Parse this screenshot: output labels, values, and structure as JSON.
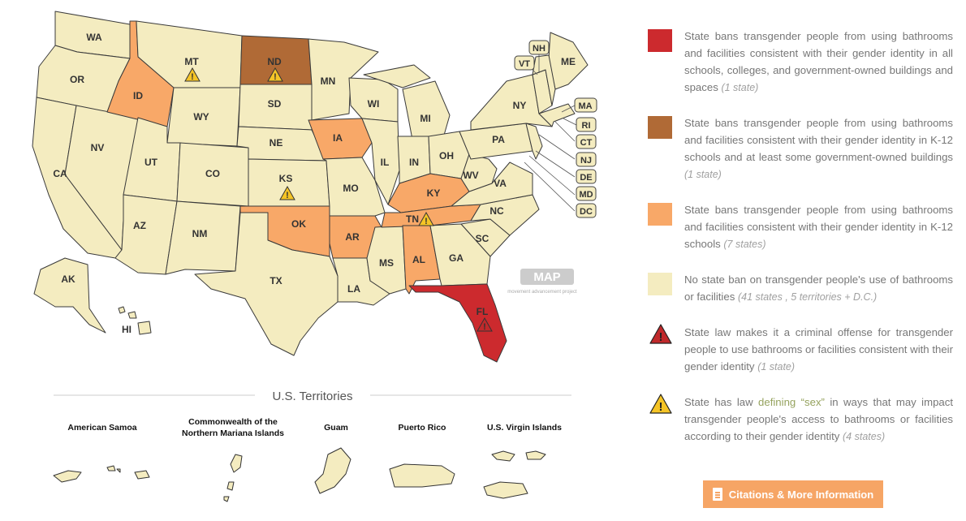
{
  "colors": {
    "all_buildings": "#cc2a2e",
    "k12_and_gov": "#b06a36",
    "k12_only": "#f8a868",
    "none": "#f4ecc0",
    "warning_red": "#c0292b",
    "warning_yellow": "#f5c426",
    "button": "#f6a565"
  },
  "map": {
    "states": [
      {
        "abbr": "WA",
        "category": "none"
      },
      {
        "abbr": "OR",
        "category": "none"
      },
      {
        "abbr": "CA",
        "category": "none"
      },
      {
        "abbr": "NV",
        "category": "none"
      },
      {
        "abbr": "ID",
        "category": "k12_only"
      },
      {
        "abbr": "MT",
        "category": "none",
        "warning": "yellow"
      },
      {
        "abbr": "WY",
        "category": "none"
      },
      {
        "abbr": "UT",
        "category": "none"
      },
      {
        "abbr": "AZ",
        "category": "none"
      },
      {
        "abbr": "CO",
        "category": "none"
      },
      {
        "abbr": "NM",
        "category": "none"
      },
      {
        "abbr": "ND",
        "category": "k12_and_gov",
        "warning": "yellow"
      },
      {
        "abbr": "SD",
        "category": "none"
      },
      {
        "abbr": "NE",
        "category": "none"
      },
      {
        "abbr": "KS",
        "category": "none",
        "warning": "yellow"
      },
      {
        "abbr": "OK",
        "category": "k12_only"
      },
      {
        "abbr": "TX",
        "category": "none"
      },
      {
        "abbr": "MN",
        "category": "none"
      },
      {
        "abbr": "IA",
        "category": "k12_only"
      },
      {
        "abbr": "MO",
        "category": "none"
      },
      {
        "abbr": "AR",
        "category": "k12_only"
      },
      {
        "abbr": "LA",
        "category": "none"
      },
      {
        "abbr": "WI",
        "category": "none"
      },
      {
        "abbr": "IL",
        "category": "none"
      },
      {
        "abbr": "MS",
        "category": "none"
      },
      {
        "abbr": "MI",
        "category": "none"
      },
      {
        "abbr": "IN",
        "category": "none"
      },
      {
        "abbr": "KY",
        "category": "k12_only"
      },
      {
        "abbr": "TN",
        "category": "k12_only",
        "warning": "yellow"
      },
      {
        "abbr": "AL",
        "category": "k12_only"
      },
      {
        "abbr": "OH",
        "category": "none"
      },
      {
        "abbr": "GA",
        "category": "none"
      },
      {
        "abbr": "FL",
        "category": "all_buildings",
        "warning": "red"
      },
      {
        "abbr": "SC",
        "category": "none"
      },
      {
        "abbr": "NC",
        "category": "none"
      },
      {
        "abbr": "VA",
        "category": "none"
      },
      {
        "abbr": "WV",
        "category": "none"
      },
      {
        "abbr": "PA",
        "category": "none"
      },
      {
        "abbr": "NY",
        "category": "none"
      },
      {
        "abbr": "ME",
        "category": "none"
      },
      {
        "abbr": "AK",
        "category": "none"
      },
      {
        "abbr": "HI",
        "category": "none"
      }
    ],
    "callouts": [
      "NH",
      "VT",
      "MA",
      "RI",
      "CT",
      "NJ",
      "DE",
      "MD",
      "DC"
    ],
    "watermark": {
      "logo": "MAP",
      "subtitle": "movement advancement project"
    }
  },
  "territories": {
    "heading": "U.S. Territories",
    "items": [
      {
        "name": "American Samoa",
        "category": "none"
      },
      {
        "name": "Commonwealth of the Northern Mariana Islands",
        "category": "none"
      },
      {
        "name": "Guam",
        "category": "none"
      },
      {
        "name": "Puerto Rico",
        "category": "none"
      },
      {
        "name": "U.S. Virgin Islands",
        "category": "none"
      }
    ]
  },
  "legend": {
    "items": [
      {
        "swatch": "all_buildings",
        "text": "State bans transgender people from using bathrooms and facilities consistent with their gender identity in all schools, colleges, and government-owned buildings and spaces",
        "note": "(1 state)"
      },
      {
        "swatch": "k12_and_gov",
        "text": "State bans transgender people from using bathrooms and facilities consistent with their gender identity in K-12 schools and at least some government-owned buildings",
        "note": "(1 state)"
      },
      {
        "swatch": "k12_only",
        "text": "State bans transgender people from using bathrooms and facilities consistent with their gender identity in K-12 schools",
        "note": "(7 states)"
      },
      {
        "swatch": "none",
        "text": "No state ban on transgender people's use of bathrooms or facilities",
        "note": "(41 states , 5 territories + D.C.)"
      },
      {
        "icon": "red-warning-icon",
        "text": "State law makes it a criminal offense for transgender people to use bathrooms or facilities consistent with their gender identity",
        "note": "(1 state)"
      },
      {
        "icon": "yellow-warning-icon",
        "text_before": "State has law ",
        "link_text": "defining “sex”",
        "text_after": " in ways that may impact transgender people's access to bathrooms or facilities according to their gender identity",
        "note": "(4 states)"
      }
    ]
  },
  "button": {
    "label": "Citations & More Information",
    "icon": "document-icon"
  }
}
